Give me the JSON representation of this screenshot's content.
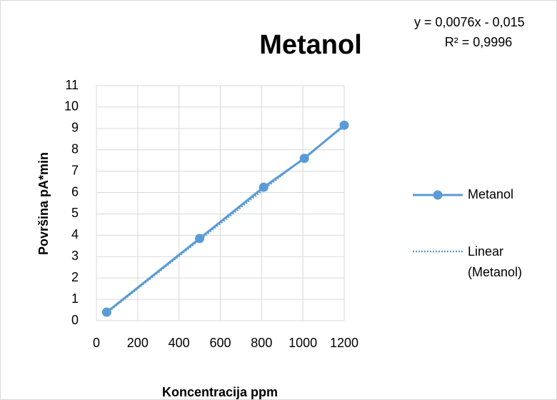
{
  "chart_data": {
    "type": "scatter-line",
    "title": "Metanol",
    "x_label": "Koncentracija ppm",
    "y_label": "Površina pA*min",
    "series": [
      {
        "name": "Metanol",
        "color": "#5b9bd5",
        "x": [
          50,
          500,
          810,
          1007,
          1200
        ],
        "values": [
          0.4,
          3.85,
          6.25,
          7.6,
          9.15
        ]
      }
    ],
    "trendline": {
      "name": "Linear (Metanol)",
      "color": "#5b9bd5",
      "equation": "y = 0,0076x - 0,015",
      "r2": "R² = 0,9996",
      "x": [
        50,
        1200
      ],
      "values": [
        0.365,
        9.105
      ]
    },
    "xlim": [
      0,
      1200
    ],
    "xticks": [
      0,
      200,
      400,
      600,
      800,
      1000,
      1200
    ],
    "ylim": [
      0,
      11
    ],
    "yticks": [
      0,
      1,
      2,
      3,
      4,
      5,
      6,
      7,
      8,
      9,
      10,
      11
    ],
    "grid": true,
    "legend": "right"
  }
}
